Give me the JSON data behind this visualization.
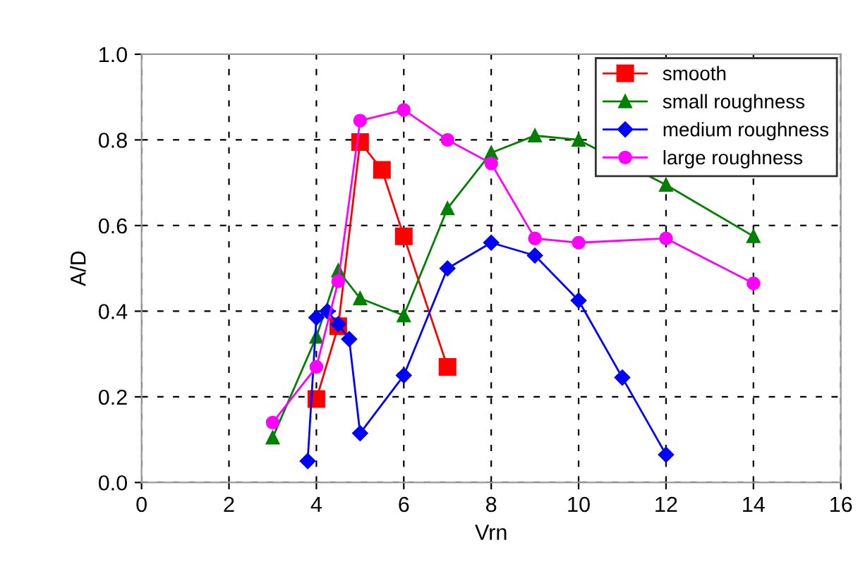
{
  "chart_data": {
    "type": "line",
    "xlabel": "Vrn",
    "ylabel": "A/D",
    "xlim": [
      0,
      16
    ],
    "xticks": [
      0,
      2,
      4,
      6,
      8,
      10,
      12,
      14,
      16
    ],
    "ylim": [
      0,
      1
    ],
    "yticks": [
      {
        "value": 0,
        "label": "0.0"
      },
      {
        "value": 0.2,
        "label": "0.2"
      },
      {
        "value": 0.4,
        "label": "0.4"
      },
      {
        "value": 0.6,
        "label": "0.6"
      },
      {
        "value": 0.8,
        "label": "0.8"
      },
      {
        "value": 1,
        "label": "1.0"
      }
    ],
    "grid": true,
    "legend": "top right",
    "series": [
      {
        "name": "smooth",
        "color": "#ff0000",
        "marker": "square",
        "x": [
          4,
          4.5,
          5,
          5.5,
          6,
          7
        ],
        "values": [
          0.195,
          0.365,
          0.795,
          0.73,
          0.575,
          0.27
        ]
      },
      {
        "name": "small roughness",
        "color": "#008000",
        "marker": "triangle",
        "x": [
          3,
          4,
          4.5,
          5,
          6,
          7,
          8,
          9,
          10,
          12,
          14
        ],
        "values": [
          0.105,
          0.34,
          0.495,
          0.43,
          0.39,
          0.64,
          0.77,
          0.81,
          0.8,
          0.695,
          0.575
        ]
      },
      {
        "name": "medium roughness",
        "color": "#0000ff",
        "marker": "diamond",
        "x": [
          3.8,
          4,
          4.25,
          4.5,
          4.75,
          5,
          6,
          7,
          8,
          9,
          10,
          11,
          12
        ],
        "values": [
          0.05,
          0.385,
          0.4,
          0.37,
          0.335,
          0.115,
          0.25,
          0.5,
          0.56,
          0.53,
          0.425,
          0.245,
          0.065
        ]
      },
      {
        "name": "large roughness",
        "color": "#ff00ff",
        "marker": "circle",
        "x": [
          3,
          4,
          4.5,
          5,
          6,
          7,
          8,
          9,
          10,
          12,
          14
        ],
        "values": [
          0.14,
          0.27,
          0.47,
          0.845,
          0.87,
          0.8,
          0.745,
          0.57,
          0.56,
          0.57,
          0.465
        ]
      }
    ]
  }
}
